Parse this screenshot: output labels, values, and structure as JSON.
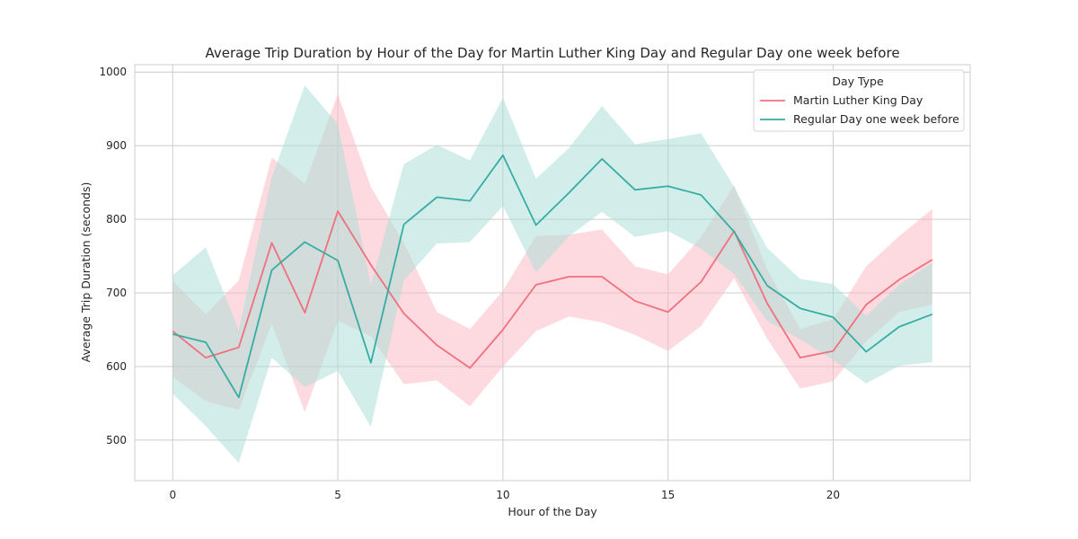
{
  "chart_data": {
    "type": "line",
    "title": "Average Trip Duration by Hour of the Day for Martin Luther King Day and Regular Day one week before",
    "xlabel": "Hour of the Day",
    "ylabel": "Average Trip Duration (seconds)",
    "xlim": [
      -1.15,
      24.15
    ],
    "ylim": [
      445,
      1010
    ],
    "xticks": [
      0,
      5,
      10,
      15,
      20
    ],
    "yticks": [
      500,
      600,
      700,
      800,
      900,
      1000
    ],
    "grid": true,
    "legend": {
      "title": "Day Type",
      "placement": "top-right"
    },
    "x": [
      0,
      1,
      2,
      3,
      4,
      5,
      6,
      7,
      8,
      9,
      10,
      11,
      12,
      13,
      14,
      15,
      16,
      17,
      18,
      19,
      20,
      21,
      22,
      23
    ],
    "series": [
      {
        "name": "Martin Luther King Day",
        "color": "#f0707f",
        "band_color": "#f9b6c0",
        "values": [
          648,
          612,
          626,
          768,
          673,
          811,
          738,
          672,
          629,
          598,
          650,
          711,
          722,
          722,
          689,
          674,
          715,
          784,
          686,
          612,
          621,
          684,
          718,
          745
        ],
        "lower": [
          586,
          553,
          541,
          658,
          538,
          662,
          641,
          576,
          581,
          546,
          600,
          648,
          668,
          660,
          643,
          621,
          655,
          720,
          638,
          570,
          580,
          634,
          674,
          684
        ],
        "upper": [
          716,
          671,
          717,
          884,
          848,
          970,
          844,
          768,
          674,
          651,
          703,
          777,
          779,
          786,
          736,
          725,
          776,
          846,
          732,
          651,
          664,
          736,
          777,
          814
        ]
      },
      {
        "name": "Regular Day one week before",
        "color": "#36ada4",
        "band_color": "#a8ddd6",
        "values": [
          644,
          633,
          558,
          731,
          769,
          744,
          605,
          793,
          830,
          825,
          887,
          792,
          836,
          882,
          840,
          845,
          833,
          783,
          710,
          679,
          667,
          620,
          654,
          671
        ],
        "lower": [
          563,
          519,
          469,
          612,
          572,
          594,
          518,
          717,
          767,
          769,
          818,
          728,
          777,
          810,
          776,
          784,
          760,
          726,
          662,
          637,
          609,
          577,
          601,
          606
        ],
        "upper": [
          724,
          762,
          649,
          857,
          982,
          929,
          711,
          875,
          901,
          880,
          965,
          855,
          897,
          954,
          902,
          909,
          917,
          844,
          761,
          719,
          712,
          669,
          711,
          741
        ]
      }
    ]
  }
}
